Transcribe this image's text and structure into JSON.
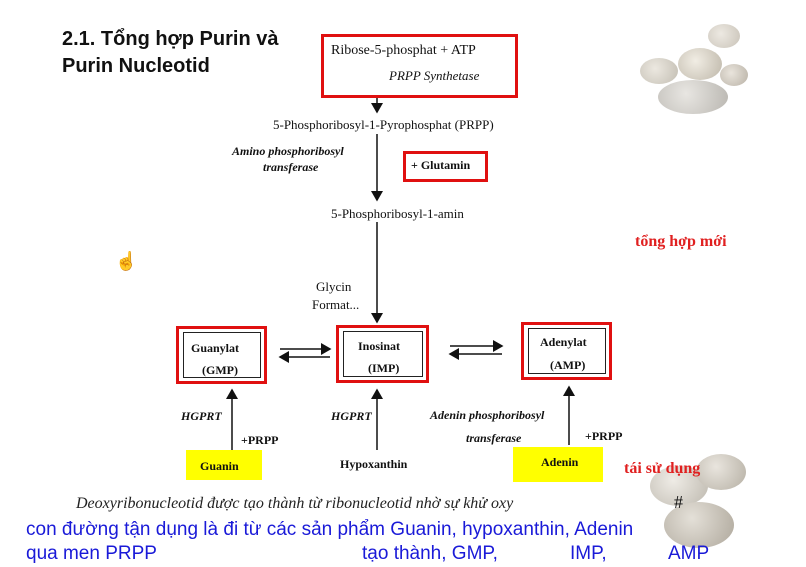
{
  "title": {
    "line1": "2.1. Tổng hợp Purin và",
    "line2": "Purin Nucleotid"
  },
  "pathway": {
    "start_line1": "Ribose-5-phosphat + ATP",
    "start_enzyme": "PRPP Synthetase",
    "prpp": "5-Phosphoribosyl-1-Pyrophosphat (PRPP)",
    "enzyme2_line1": "Amino phosphoribosyl",
    "enzyme2_line2": "transferase",
    "glutamin": "+ Glutamin",
    "amin": "5-Phosphoribosyl-1-amin",
    "glycin": "Glycin",
    "format": "Format...",
    "guanylat": "Guanylat",
    "gmp": "(GMP)",
    "inosinat": "Inosinat",
    "imp": "(IMP)",
    "adenylat": "Adenylat",
    "amp": "(AMP)",
    "hgprt_left": "HGPRT",
    "prpp_left": "+PRPP",
    "hgprt_mid": "HGPRT",
    "enzyme3_line1": "Adenin phosphoribosyl",
    "enzyme3_line2": "transferase",
    "prpp_right": "+PRPP",
    "guanin": "Guanin",
    "hypoxanthin": "Hypoxanthin",
    "adenin": "Adenin"
  },
  "annotations": {
    "tong_hop_moi": "tổng hợp mới",
    "tai_su_dung": "tái sử dụng",
    "hash": "#"
  },
  "caption": "Deoxyribonucleotid được tạo thành từ ribonucleotid nhờ sự khử oxy",
  "note": {
    "line1": "con đường tận dụng là đi từ các sản phẩm Guanin, hypoxanthin, Adenin",
    "line2_a": "qua men PRPP",
    "line2_b": "tạo thành, GMP,",
    "line2_c": "IMP,",
    "line2_d": "AMP"
  },
  "icons": {
    "cursor": "hand-cursor-icon"
  },
  "colors": {
    "highlight_box": "#e01010",
    "highlight_fill": "#ffff00",
    "note_text": "#1a1ad8",
    "annotation": "#e02020"
  }
}
